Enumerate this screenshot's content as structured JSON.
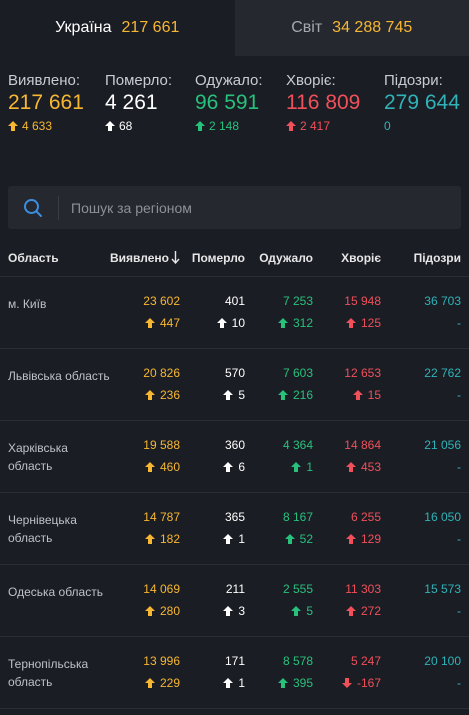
{
  "tabs": [
    {
      "label": "Україна",
      "count": "217 661"
    },
    {
      "label": "Світ",
      "count": "34 288 745"
    }
  ],
  "summary": [
    {
      "label": "Виявлено:",
      "value": "217 661",
      "delta": "4 633",
      "color": "#f7b731"
    },
    {
      "label": "Померло:",
      "value": "4 261",
      "delta": "68",
      "color": "#ffffff"
    },
    {
      "label": "Одужало:",
      "value": "96 591",
      "delta": "2 148",
      "color": "#27c17c"
    },
    {
      "label": "Хворіє:",
      "value": "116 809",
      "delta": "2 417",
      "color": "#f0505a"
    },
    {
      "label": "Підозри:",
      "value": "279 644",
      "delta": "0",
      "color": "#2fb3b8"
    }
  ],
  "search": {
    "placeholder": "Пошук за регіоном"
  },
  "table": {
    "headers": {
      "region": "Область",
      "confirmed": "Виявлено",
      "deaths": "Померло",
      "recovered": "Одужало",
      "sick": "Хворіє",
      "suspected": "Підозри"
    },
    "rows": [
      {
        "region": "м. Київ",
        "confirmed": "23 602",
        "confirmed_d": "447",
        "deaths": "401",
        "deaths_d": "10",
        "recovered": "7 253",
        "recovered_d": "312",
        "sick": "15 948",
        "sick_d": "125",
        "suspected": "36 703",
        "suspected_d": "-"
      },
      {
        "region": "Львівська область",
        "confirmed": "20 826",
        "confirmed_d": "236",
        "deaths": "570",
        "deaths_d": "5",
        "recovered": "7 603",
        "recovered_d": "216",
        "sick": "12 653",
        "sick_d": "15",
        "suspected": "22 762",
        "suspected_d": "-"
      },
      {
        "region": "Харківська область",
        "confirmed": "19 588",
        "confirmed_d": "460",
        "deaths": "360",
        "deaths_d": "6",
        "recovered": "4 364",
        "recovered_d": "1",
        "sick": "14 864",
        "sick_d": "453",
        "suspected": "21 056",
        "suspected_d": "-"
      },
      {
        "region": "Чернівецька область",
        "confirmed": "14 787",
        "confirmed_d": "182",
        "deaths": "365",
        "deaths_d": "1",
        "recovered": "8 167",
        "recovered_d": "52",
        "sick": "6 255",
        "sick_d": "129",
        "suspected": "16 050",
        "suspected_d": "-"
      },
      {
        "region": "Одеська область",
        "confirmed": "14 069",
        "confirmed_d": "280",
        "deaths": "211",
        "deaths_d": "3",
        "recovered": "2 555",
        "recovered_d": "5",
        "sick": "11 303",
        "sick_d": "272",
        "suspected": "15 573",
        "suspected_d": "-"
      },
      {
        "region": "Тернопільська область",
        "confirmed": "13 996",
        "confirmed_d": "229",
        "deaths": "171",
        "deaths_d": "1",
        "recovered": "8 578",
        "recovered_d": "395",
        "sick": "5 247",
        "sick_d": "-167",
        "sick_d_down": true,
        "suspected": "20 100",
        "suspected_d": "-"
      }
    ]
  }
}
